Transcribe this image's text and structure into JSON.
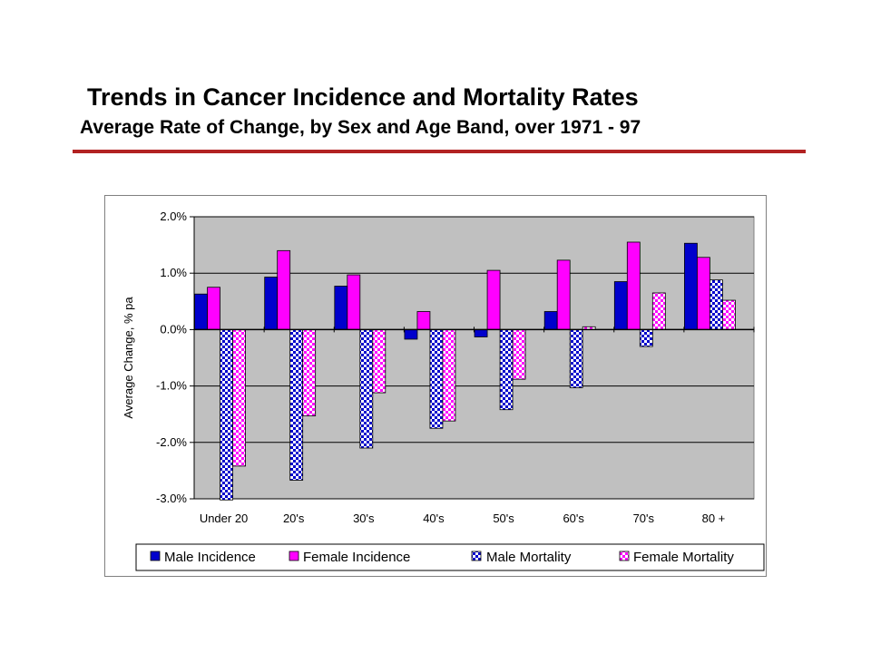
{
  "title": "Trends in Cancer Incidence and Mortality Rates",
  "subtitle": "Average Rate of Change, by Sex and Age Band, over 1971 - 97",
  "chart_data": {
    "type": "bar",
    "ylabel": "Average Change, % pa",
    "xlabel": "",
    "ylim": [
      -3.0,
      2.0
    ],
    "yticks": [
      "2.0%",
      "1.0%",
      "0.0%",
      "-1.0%",
      "-2.0%",
      "-3.0%"
    ],
    "grid": true,
    "legend_position": "bottom",
    "plot_background": "#c0c0c0",
    "categories": [
      "Under 20",
      "20's",
      "30's",
      "40's",
      "50's",
      "60's",
      "70's",
      "80 +"
    ],
    "series": [
      {
        "name": "Male Incidence",
        "color": "#0000cc",
        "pattern": "solid",
        "values": [
          0.63,
          0.93,
          0.77,
          -0.17,
          -0.13,
          0.32,
          0.85,
          1.53
        ]
      },
      {
        "name": "Female Incidence",
        "color": "#ff00ff",
        "pattern": "solid",
        "values": [
          0.75,
          1.4,
          0.97,
          0.32,
          1.05,
          1.23,
          1.55,
          1.28
        ]
      },
      {
        "name": "Male Mortality",
        "color": "#0000cc",
        "pattern": "checker",
        "values": [
          -3.02,
          -2.67,
          -2.1,
          -1.75,
          -1.42,
          -1.03,
          -0.3,
          0.88
        ]
      },
      {
        "name": "Female Mortality",
        "color": "#ff00ff",
        "pattern": "checker",
        "values": [
          -2.42,
          -1.53,
          -1.12,
          -1.62,
          -0.88,
          0.05,
          0.65,
          0.52
        ]
      }
    ]
  }
}
